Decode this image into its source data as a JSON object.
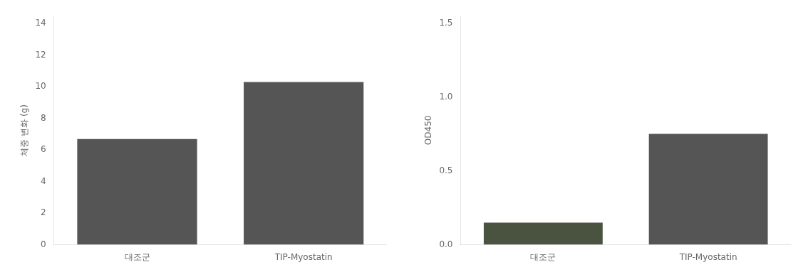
{
  "chart_data": [
    {
      "type": "bar",
      "categories": [
        "대조군",
        "TIP-Myostatin"
      ],
      "values": [
        6.7,
        10.3
      ],
      "color": "#555555",
      "ylabel": "체중 변화 (g)",
      "ylim": [
        0,
        14.5
      ],
      "yticks": [
        0,
        2,
        4,
        6,
        8,
        10,
        12,
        14
      ],
      "grid": false
    },
    {
      "type": "bar",
      "categories": [
        "대조군",
        "TIP-Myostatin"
      ],
      "values": [
        0.15,
        0.75
      ],
      "colors": [
        "#4a5240",
        "#555555"
      ],
      "ylabel": "OD450",
      "ylim": [
        0.0,
        1.55
      ],
      "yticks": [
        {
          "value": 0,
          "label": "0.0"
        },
        0.5,
        {
          "value": 1,
          "label": "1.0"
        },
        1.5
      ],
      "grid": false
    }
  ]
}
